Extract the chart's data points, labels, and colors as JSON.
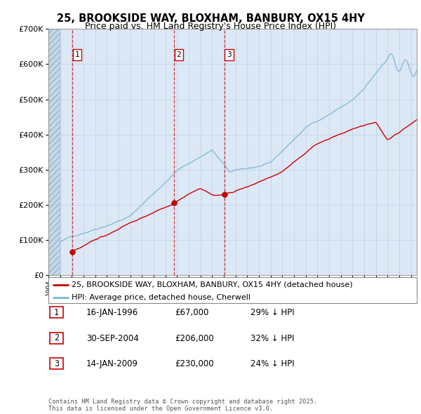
{
  "title_line1": "25, BROOKSIDE WAY, BLOXHAM, BANBURY, OX15 4HY",
  "title_line2": "Price paid vs. HM Land Registry's House Price Index (HPI)",
  "xlim": [
    1994.0,
    2025.5
  ],
  "ylim": [
    0,
    700000
  ],
  "yticks": [
    0,
    100000,
    200000,
    300000,
    400000,
    500000,
    600000,
    700000
  ],
  "ytick_labels": [
    "£0",
    "£100K",
    "£200K",
    "£300K",
    "£400K",
    "£500K",
    "£600K",
    "£700K"
  ],
  "hpi_color": "#7ab8d9",
  "price_color": "#cc0000",
  "vline_color": "#cc0000",
  "purchases": [
    {
      "year": 1996.04,
      "price": 67000,
      "label": "1"
    },
    {
      "year": 2004.75,
      "price": 206000,
      "label": "2"
    },
    {
      "year": 2009.04,
      "price": 230000,
      "label": "3"
    }
  ],
  "legend_entries": [
    {
      "label": "25, BROOKSIDE WAY, BLOXHAM, BANBURY, OX15 4HY (detached house)",
      "color": "#cc0000"
    },
    {
      "label": "HPI: Average price, detached house, Cherwell",
      "color": "#7ab8d9"
    }
  ],
  "table_rows": [
    {
      "num": "1",
      "date": "16-JAN-1996",
      "price": "£67,000",
      "note": "29% ↓ HPI"
    },
    {
      "num": "2",
      "date": "30-SEP-2004",
      "price": "£206,000",
      "note": "32% ↓ HPI"
    },
    {
      "num": "3",
      "date": "14-JAN-2009",
      "price": "£230,000",
      "note": "24% ↓ HPI"
    }
  ],
  "footnote": "Contains HM Land Registry data © Crown copyright and database right 2025.\nThis data is licensed under the Open Government Licence v3.0.",
  "bg_color": "#dce8f5",
  "grid_color": "#c0cfe0",
  "hpi_start_year": 1995.0
}
